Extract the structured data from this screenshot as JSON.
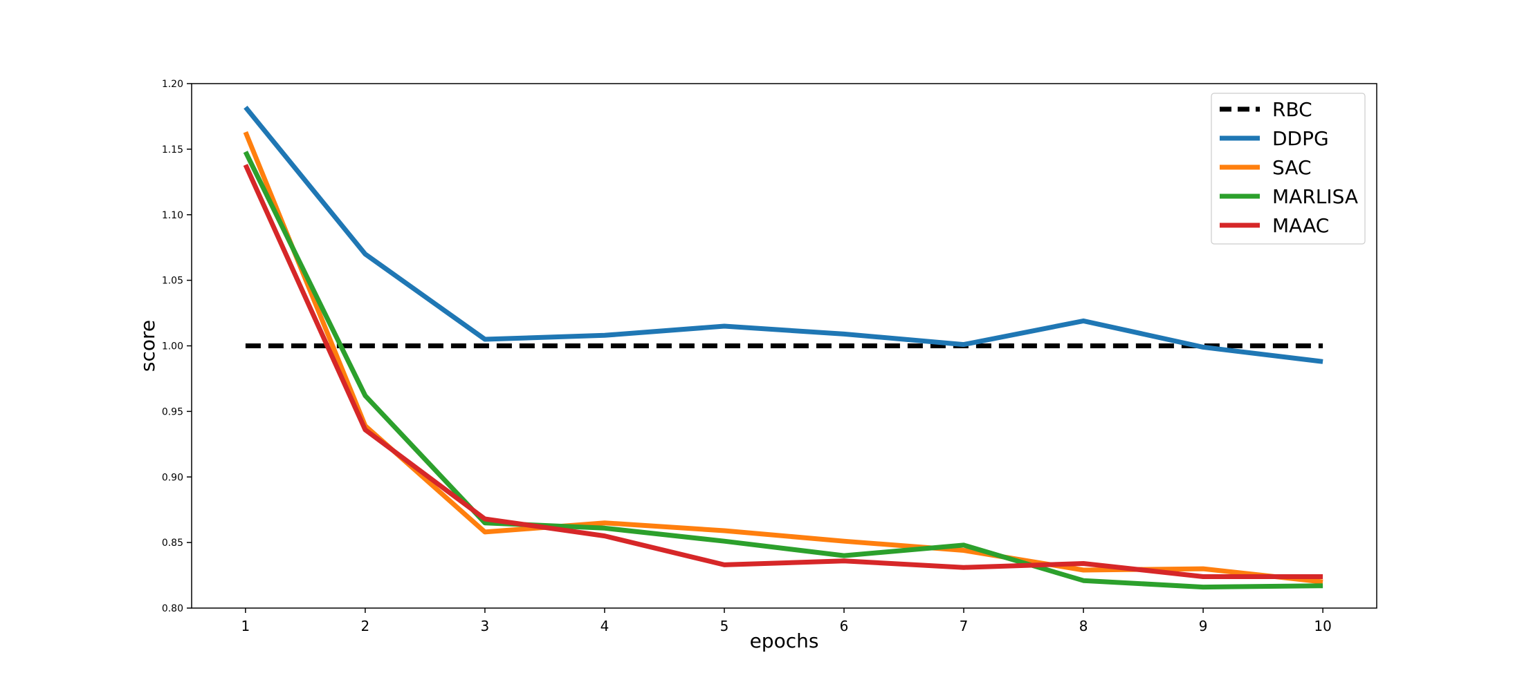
{
  "chart_data": {
    "type": "line",
    "title": "",
    "xlabel": "epochs",
    "ylabel": "score",
    "x": [
      1,
      2,
      3,
      4,
      5,
      6,
      7,
      8,
      9,
      10
    ],
    "xlim": [
      0.55,
      10.45
    ],
    "ylim": [
      0.8,
      1.2
    ],
    "xticks": [
      "1",
      "2",
      "3",
      "4",
      "5",
      "6",
      "7",
      "8",
      "9",
      "10"
    ],
    "yticks": [
      "0.80",
      "0.85",
      "0.90",
      "0.95",
      "1.00",
      "1.05",
      "1.10",
      "1.15",
      "1.20"
    ],
    "grid": false,
    "legend_position": "top-right",
    "series": [
      {
        "name": "RBC",
        "color": "#000000",
        "style": "dashed",
        "values": [
          1.0,
          1.0,
          1.0,
          1.0,
          1.0,
          1.0,
          1.0,
          1.0,
          1.0,
          1.0
        ]
      },
      {
        "name": "DDPG",
        "color": "#1f77b4",
        "style": "solid",
        "values": [
          1.182,
          1.07,
          1.005,
          1.008,
          1.015,
          1.009,
          1.001,
          1.019,
          0.999,
          0.988
        ]
      },
      {
        "name": "SAC",
        "color": "#ff7f0e",
        "style": "solid",
        "values": [
          1.163,
          0.939,
          0.858,
          0.865,
          0.859,
          0.851,
          0.844,
          0.829,
          0.83,
          0.82
        ]
      },
      {
        "name": "MARLISA",
        "color": "#2ca02c",
        "style": "solid",
        "values": [
          1.148,
          0.962,
          0.865,
          0.861,
          0.851,
          0.84,
          0.848,
          0.821,
          0.816,
          0.817
        ]
      },
      {
        "name": "MAAC",
        "color": "#d62728",
        "style": "solid",
        "values": [
          1.138,
          0.936,
          0.868,
          0.855,
          0.833,
          0.836,
          0.831,
          0.834,
          0.824,
          0.824
        ]
      }
    ]
  }
}
